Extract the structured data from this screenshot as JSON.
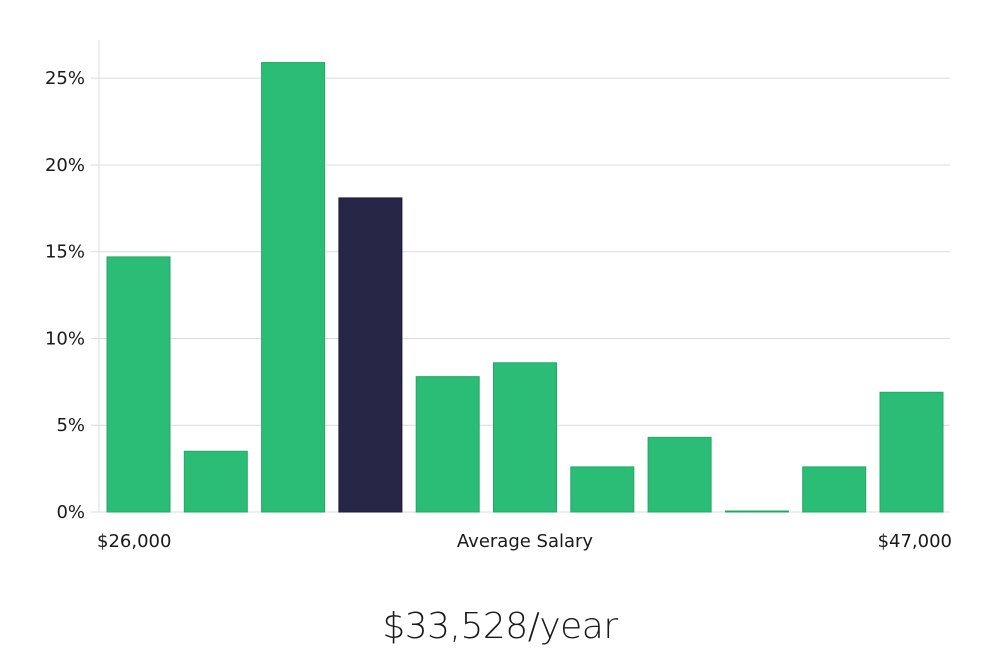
{
  "chart_data": {
    "type": "bar",
    "title": "",
    "xlabel": "Average Salary",
    "ylabel": "",
    "x_min_label": "$26,000",
    "x_max_label": "$47,000",
    "y_ticks": [
      "0%",
      "5%",
      "10%",
      "15%",
      "20%",
      "25%"
    ],
    "ylim": [
      0,
      27.2
    ],
    "grid": true,
    "values": [
      14.7,
      3.5,
      25.9,
      18.1,
      7.8,
      8.6,
      2.6,
      4.3,
      0.05,
      2.6,
      6.9
    ],
    "highlight_index": 3,
    "bar_color": "#2bbd76",
    "highlight_color": "#282646"
  },
  "summary": {
    "average_salary": "$33,528/year"
  }
}
